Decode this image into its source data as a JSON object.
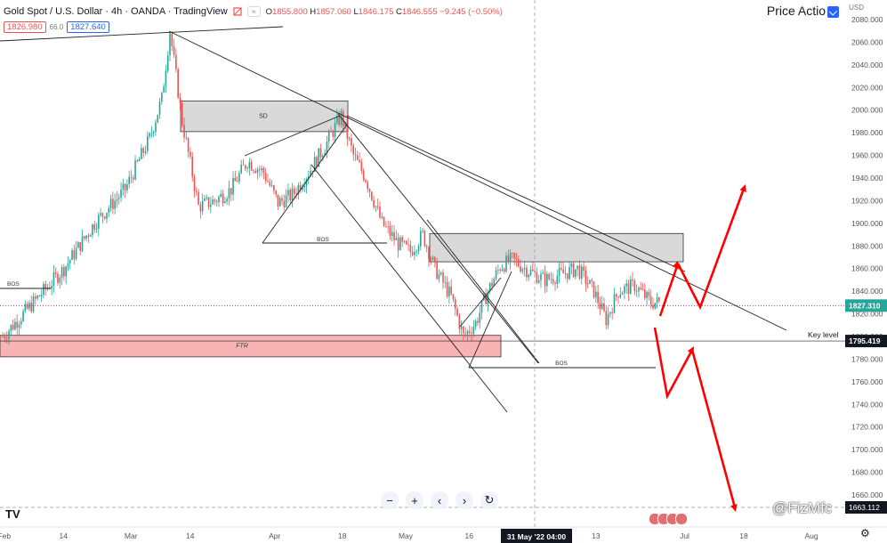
{
  "header": {
    "title": "Gold Spot / U.S. Dollar · 4h · OANDA · TradingView",
    "o_label": "O",
    "o_value": "1855.800",
    "h_label": "H",
    "h_value": "1857.060",
    "l_label": "L",
    "l_value": "1846.175",
    "c_label": "C",
    "c_value": "1846.555",
    "change": "−9.245 (−0.50%)"
  },
  "order_panel": {
    "sell_price": "1826.980",
    "spread": "66.0",
    "buy_price": "1827.640"
  },
  "indicator_title": "Price Actio",
  "currency": "USD",
  "watermark": "@FizMfc",
  "colors": {
    "bull": "#26a69a",
    "bear": "#ef5350",
    "arrow": "#ff0000",
    "zone": "#d9d9d9",
    "ftr_zone": "#f8b4b4",
    "price_tag": "#26a69a"
  },
  "chart_data": {
    "type": "candlestick",
    "symbol": "XAUUSD",
    "timeframe": "4h",
    "ylim": [
      1652,
      2090
    ],
    "y_ticks": [
      1660,
      1680,
      1700,
      1720,
      1740,
      1760,
      1780,
      1800,
      1820,
      1840,
      1860,
      1880,
      1900,
      1920,
      1940,
      1960,
      1980,
      2000,
      2020,
      2040,
      2060,
      2080
    ],
    "x_ticks": [
      {
        "label": "Feb",
        "px_frac": 0.005
      },
      {
        "label": "14",
        "px_frac": 0.075
      },
      {
        "label": "Mar",
        "px_frac": 0.155
      },
      {
        "label": "14",
        "px_frac": 0.225
      },
      {
        "label": "Apr",
        "px_frac": 0.325
      },
      {
        "label": "18",
        "px_frac": 0.405
      },
      {
        "label": "May",
        "px_frac": 0.48
      },
      {
        "label": "16",
        "px_frac": 0.555
      },
      {
        "label": "13",
        "px_frac": 0.705
      },
      {
        "label": "Jul",
        "px_frac": 0.81
      },
      {
        "label": "18",
        "px_frac": 0.88
      },
      {
        "label": "Aug",
        "px_frac": 0.96
      }
    ],
    "crosshair_date": "31 May '22  04:00",
    "current_price": "1827.310",
    "key_level_price": "1795.419",
    "low_marker": "1663.112",
    "anchor_points": [
      {
        "i": 0,
        "p": 1800
      },
      {
        "i": 15,
        "p": 1830
      },
      {
        "i": 30,
        "p": 1860
      },
      {
        "i": 45,
        "p": 1900
      },
      {
        "i": 60,
        "p": 1930
      },
      {
        "i": 72,
        "p": 1975
      },
      {
        "i": 78,
        "p": 2010
      },
      {
        "i": 82,
        "p": 2070
      },
      {
        "i": 88,
        "p": 1990
      },
      {
        "i": 96,
        "p": 1915
      },
      {
        "i": 104,
        "p": 1920
      },
      {
        "i": 112,
        "p": 1930
      },
      {
        "i": 120,
        "p": 1955
      },
      {
        "i": 128,
        "p": 1945
      },
      {
        "i": 135,
        "p": 1918
      },
      {
        "i": 142,
        "p": 1925
      },
      {
        "i": 150,
        "p": 1945
      },
      {
        "i": 158,
        "p": 1968
      },
      {
        "i": 166,
        "p": 1995
      },
      {
        "i": 172,
        "p": 1960
      },
      {
        "i": 178,
        "p": 1940
      },
      {
        "i": 186,
        "p": 1900
      },
      {
        "i": 194,
        "p": 1882
      },
      {
        "i": 200,
        "p": 1875
      },
      {
        "i": 206,
        "p": 1890
      },
      {
        "i": 212,
        "p": 1860
      },
      {
        "i": 220,
        "p": 1835
      },
      {
        "i": 226,
        "p": 1800
      },
      {
        "i": 232,
        "p": 1812
      },
      {
        "i": 238,
        "p": 1840
      },
      {
        "i": 244,
        "p": 1862
      },
      {
        "i": 250,
        "p": 1868
      },
      {
        "i": 258,
        "p": 1858
      },
      {
        "i": 266,
        "p": 1850
      },
      {
        "i": 274,
        "p": 1855
      },
      {
        "i": 282,
        "p": 1860
      },
      {
        "i": 290,
        "p": 1840
      },
      {
        "i": 296,
        "p": 1815
      },
      {
        "i": 302,
        "p": 1840
      },
      {
        "i": 310,
        "p": 1845
      },
      {
        "i": 318,
        "p": 1830
      },
      {
        "i": 322,
        "p": 1830
      }
    ]
  },
  "annotations": {
    "sd_label": "SD",
    "bos_labels": [
      "BOS",
      "BOS",
      "BOS"
    ],
    "ftr_label": "FTR",
    "key_level_label": "Key level"
  },
  "toolbar": {
    "minus": "−",
    "plus": "+",
    "left": "‹",
    "right": "›",
    "reset": "↻"
  },
  "logo": "TV"
}
